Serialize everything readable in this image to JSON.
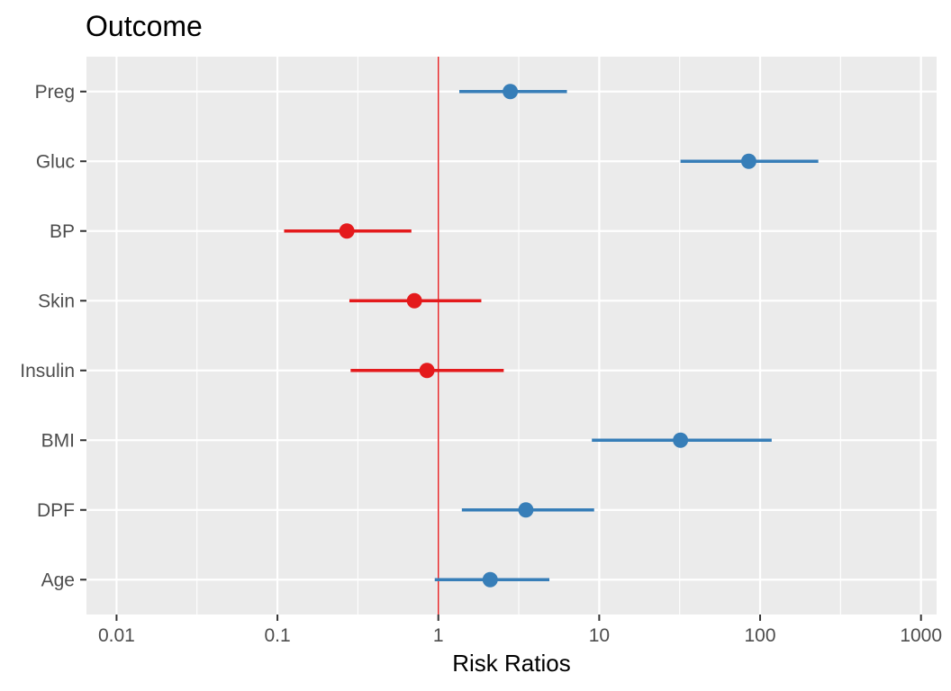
{
  "chart_data": {
    "type": "scatter",
    "subtype": "forest-plot",
    "title": "Outcome",
    "xlabel": "Risk Ratios",
    "ylabel": "",
    "x_scale": "log10",
    "xlim": [
      0.0065,
      1250
    ],
    "x_ticks": [
      {
        "value": 0.01,
        "label": "0.01"
      },
      {
        "value": 0.1,
        "label": "0.1"
      },
      {
        "value": 1,
        "label": "1"
      },
      {
        "value": 10,
        "label": "10"
      },
      {
        "value": 100,
        "label": "100"
      },
      {
        "value": 1000,
        "label": "1000"
      }
    ],
    "reference_line": {
      "x": 1,
      "color": "#e41a1c"
    },
    "grid": true,
    "legend": "none",
    "colors": {
      "above_one": "#377eb8",
      "below_one": "#e41a1c",
      "panel": "#ebebeb",
      "grid": "#ffffff"
    },
    "points": [
      {
        "category": "Preg",
        "estimate": 2.8,
        "low": 1.35,
        "high": 6.3
      },
      {
        "category": "Gluc",
        "estimate": 85,
        "low": 32,
        "high": 230
      },
      {
        "category": "BP",
        "estimate": 0.27,
        "low": 0.11,
        "high": 0.68
      },
      {
        "category": "Skin",
        "estimate": 0.71,
        "low": 0.28,
        "high": 1.85
      },
      {
        "category": "Insulin",
        "estimate": 0.85,
        "low": 0.285,
        "high": 2.55
      },
      {
        "category": "BMI",
        "estimate": 32,
        "low": 9,
        "high": 118
      },
      {
        "category": "DPF",
        "estimate": 3.5,
        "low": 1.4,
        "high": 9.3
      },
      {
        "category": "Age",
        "estimate": 2.1,
        "low": 0.95,
        "high": 4.9
      }
    ]
  }
}
